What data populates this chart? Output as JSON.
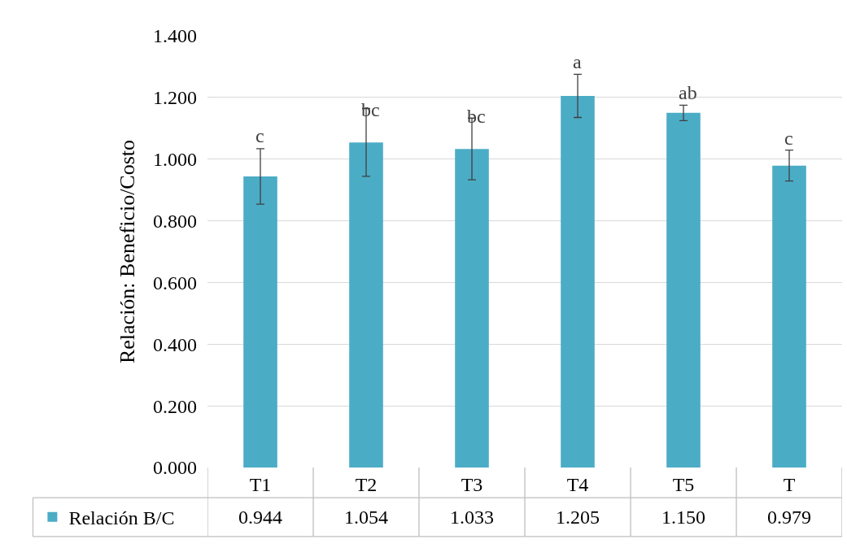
{
  "chart_data": {
    "type": "bar",
    "ylabel": "Relación: Beneficio/Costo",
    "categories": [
      "T1",
      "T2",
      "T3",
      "T4",
      "T5",
      "T"
    ],
    "series": [
      {
        "name": "Relación B/C",
        "color": "#4bacc6",
        "values": [
          0.944,
          1.054,
          1.033,
          1.205,
          1.15,
          0.979
        ],
        "errors": [
          0.09,
          0.11,
          0.1,
          0.07,
          0.025,
          0.05
        ],
        "value_labels": [
          "0.944",
          "1.054",
          "1.033",
          "1.205",
          "1.150",
          "0.979"
        ]
      }
    ],
    "ylim": [
      0,
      1.4
    ],
    "yticks": [
      {
        "value": 0,
        "label": "0.000"
      },
      {
        "value": 0.2,
        "label": "0.200"
      },
      {
        "value": 0.4,
        "label": "0.400"
      },
      {
        "value": 0.6,
        "label": "0.600"
      },
      {
        "value": 0.8,
        "label": "0.800"
      },
      {
        "value": 1,
        "label": "1.000"
      },
      {
        "value": 1.2,
        "label": "1.200"
      },
      {
        "value": 1.4,
        "label": "1.400"
      }
    ],
    "grid": "y",
    "legend": "bottom left",
    "annotations": [
      {
        "text": "c",
        "x": "T1",
        "y": 1.036
      },
      {
        "text": "bc",
        "x": "T2",
        "y": 1.12
      },
      {
        "text": "bc",
        "x": "T3",
        "y": 1.1
      },
      {
        "text": "a",
        "x": "T4",
        "y": 1.275
      },
      {
        "text": "ab",
        "x": "T5",
        "y": 1.175
      },
      {
        "text": "c",
        "x": "T",
        "y": 1.029
      }
    ]
  }
}
